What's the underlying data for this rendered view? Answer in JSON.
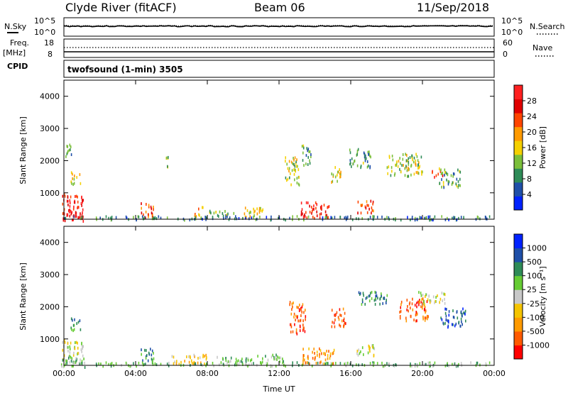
{
  "header": {
    "station": "Clyde River (fitACF)",
    "beam": "Beam 06",
    "date": "11/Sep/2018"
  },
  "noise_panel": {
    "left_label": "N.Sky",
    "left_ticks": [
      "10^5",
      "10^0"
    ],
    "right_ticks": [
      "10^5",
      "10^0"
    ],
    "right_label": "N.Search",
    "series": [
      {
        "name": "N.Sky"
      },
      {
        "name": "N.Search"
      }
    ]
  },
  "freq_panel": {
    "left_label_line1": "Freq.",
    "left_label_line2": "[MHz]",
    "left_ticks": [
      "18",
      "8"
    ],
    "right_ticks": [
      "60",
      "0"
    ],
    "right_label": "Nave",
    "cpid_label": "CPID"
  },
  "cpid_text": "twofsound (1-min) 3505",
  "colors": {
    "power": [
      "#0022ff",
      "#1f4fa8",
      "#2e8b57",
      "#7bbf3a",
      "#f5d000",
      "#ff9a00",
      "#ff4500",
      "#e00000",
      "#ff2020"
    ],
    "velocity": [
      "#ff0000",
      "#ff5a00",
      "#ff9a00",
      "#f5c400",
      "#c8c8c8",
      "#66cc33",
      "#2e8b57",
      "#1f4fa8",
      "#0022ff"
    ],
    "frame": "#000000"
  },
  "chart_data": [
    {
      "type": "heatmap",
      "name": "power",
      "ylabel": "Slant Range [km]",
      "xticks": [
        "00:00",
        "04:00",
        "08:00",
        "12:00",
        "16:00",
        "20:00",
        "00:00"
      ],
      "yticks": [
        "1000",
        "2000",
        "3000",
        "4000"
      ],
      "xlim": [
        0,
        24
      ],
      "ylim": [
        180,
        4500
      ],
      "colorbar": {
        "label": "Power [dB]",
        "ticks": [
          "4",
          "8",
          "12",
          "16",
          "20",
          "24",
          "28"
        ],
        "range": [
          0,
          30
        ]
      },
      "blobs": [
        {
          "x": 0.5,
          "y": 600,
          "w": 1.2,
          "h": 800,
          "v": 26
        },
        {
          "x": 0.5,
          "y": 300,
          "w": 1.2,
          "h": 300,
          "v": 29
        },
        {
          "x": 0.6,
          "y": 1500,
          "w": 0.6,
          "h": 400,
          "v": 15
        },
        {
          "x": 0.2,
          "y": 2300,
          "w": 0.4,
          "h": 500,
          "v": 8
        },
        {
          "x": 4.6,
          "y": 500,
          "w": 0.8,
          "h": 500,
          "v": 22
        },
        {
          "x": 5.7,
          "y": 2000,
          "w": 0.2,
          "h": 400,
          "v": 12
        },
        {
          "x": 7.5,
          "y": 450,
          "w": 0.5,
          "h": 300,
          "v": 18
        },
        {
          "x": 8.8,
          "y": 350,
          "w": 1.4,
          "h": 250,
          "v": 10
        },
        {
          "x": 10.5,
          "y": 450,
          "w": 1.2,
          "h": 350,
          "v": 16
        },
        {
          "x": 12.7,
          "y": 1700,
          "w": 0.8,
          "h": 900,
          "v": 14
        },
        {
          "x": 13.5,
          "y": 2200,
          "w": 0.5,
          "h": 700,
          "v": 10
        },
        {
          "x": 14,
          "y": 500,
          "w": 1.6,
          "h": 500,
          "v": 25
        },
        {
          "x": 15.2,
          "y": 1600,
          "w": 0.6,
          "h": 500,
          "v": 15
        },
        {
          "x": 16.8,
          "y": 600,
          "w": 0.9,
          "h": 400,
          "v": 22
        },
        {
          "x": 16.5,
          "y": 2100,
          "w": 1.2,
          "h": 600,
          "v": 9
        },
        {
          "x": 19,
          "y": 1900,
          "w": 2,
          "h": 700,
          "v": 13
        },
        {
          "x": 20.8,
          "y": 1650,
          "w": 0.6,
          "h": 250,
          "v": 24
        },
        {
          "x": 21.5,
          "y": 1500,
          "w": 1.2,
          "h": 600,
          "v": 10
        },
        {
          "x": 12,
          "y": 250,
          "w": 24,
          "h": 120,
          "v": 7
        }
      ]
    },
    {
      "type": "heatmap",
      "name": "velocity",
      "ylabel": "Slant Range [km]",
      "xlabel": "Time UT",
      "xticks": [
        "00:00",
        "04:00",
        "08:00",
        "12:00",
        "16:00",
        "20:00",
        "00:00"
      ],
      "yticks": [
        "1000",
        "2000",
        "3000",
        "4000"
      ],
      "xlim": [
        0,
        24
      ],
      "ylim": [
        180,
        4500
      ],
      "colorbar": {
        "label": "Velocity [m s⁻¹]",
        "ticks": [
          "1000",
          "500",
          "100",
          "25",
          "-25",
          "-100",
          "-500",
          "-1000"
        ]
      },
      "blobs": [
        {
          "x": 0.5,
          "y": 600,
          "w": 1.2,
          "h": 800,
          "c": 4
        },
        {
          "x": 0.5,
          "y": 300,
          "w": 1.4,
          "h": 300,
          "c": 5
        },
        {
          "x": 0.6,
          "y": 1500,
          "w": 0.6,
          "h": 400,
          "c": 6
        },
        {
          "x": 4.6,
          "y": 500,
          "w": 0.8,
          "h": 500,
          "c": 6
        },
        {
          "x": 7,
          "y": 400,
          "w": 2,
          "h": 300,
          "c": 3
        },
        {
          "x": 9.5,
          "y": 350,
          "w": 2,
          "h": 250,
          "c": 5
        },
        {
          "x": 11.5,
          "y": 400,
          "w": 1.5,
          "h": 300,
          "c": 5
        },
        {
          "x": 13,
          "y": 1700,
          "w": 0.9,
          "h": 1000,
          "c": 1
        },
        {
          "x": 14.2,
          "y": 500,
          "w": 1.8,
          "h": 500,
          "c": 2
        },
        {
          "x": 15.3,
          "y": 1700,
          "w": 0.8,
          "h": 600,
          "c": 1
        },
        {
          "x": 16.8,
          "y": 700,
          "w": 1,
          "h": 400,
          "c": 4
        },
        {
          "x": 17.3,
          "y": 2300,
          "w": 1.8,
          "h": 400,
          "c": 6
        },
        {
          "x": 19.5,
          "y": 1950,
          "w": 1.6,
          "h": 700,
          "c": 1
        },
        {
          "x": 20.5,
          "y": 2300,
          "w": 1.5,
          "h": 400,
          "c": 4
        },
        {
          "x": 21.7,
          "y": 1700,
          "w": 1.4,
          "h": 600,
          "c": 7
        },
        {
          "x": 12,
          "y": 250,
          "w": 24,
          "h": 120,
          "c": 5
        }
      ]
    }
  ]
}
